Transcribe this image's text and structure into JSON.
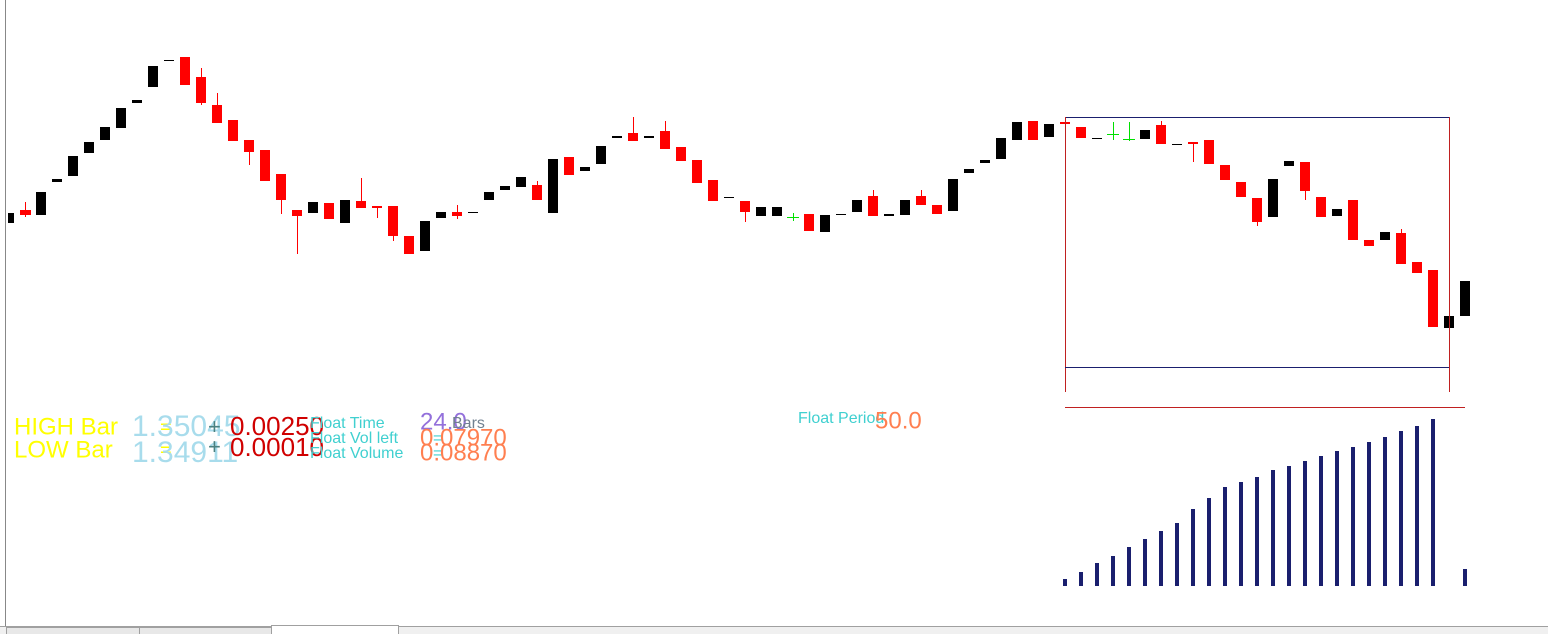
{
  "info": {
    "high": {
      "label": "HIGH Bar",
      "eq": "=",
      "price": "1.35045",
      "plus": "+",
      "delta": "0.00250"
    },
    "low": {
      "label": "LOW Bar",
      "eq": "=",
      "price": "1.34911",
      "plus": "+",
      "delta": "0.00010"
    },
    "float_time": {
      "label": "Float Time",
      "value": "24.0",
      "unit": "Bars"
    },
    "float_vol_left": {
      "label": "Float Vol left",
      "eq": "=",
      "value": "0.07970"
    },
    "float_volume": {
      "label": "Float Volume",
      "eq": "=",
      "value": "0.08870"
    },
    "float_period": {
      "label": "Float Period",
      "value": "50.0"
    }
  }
}
